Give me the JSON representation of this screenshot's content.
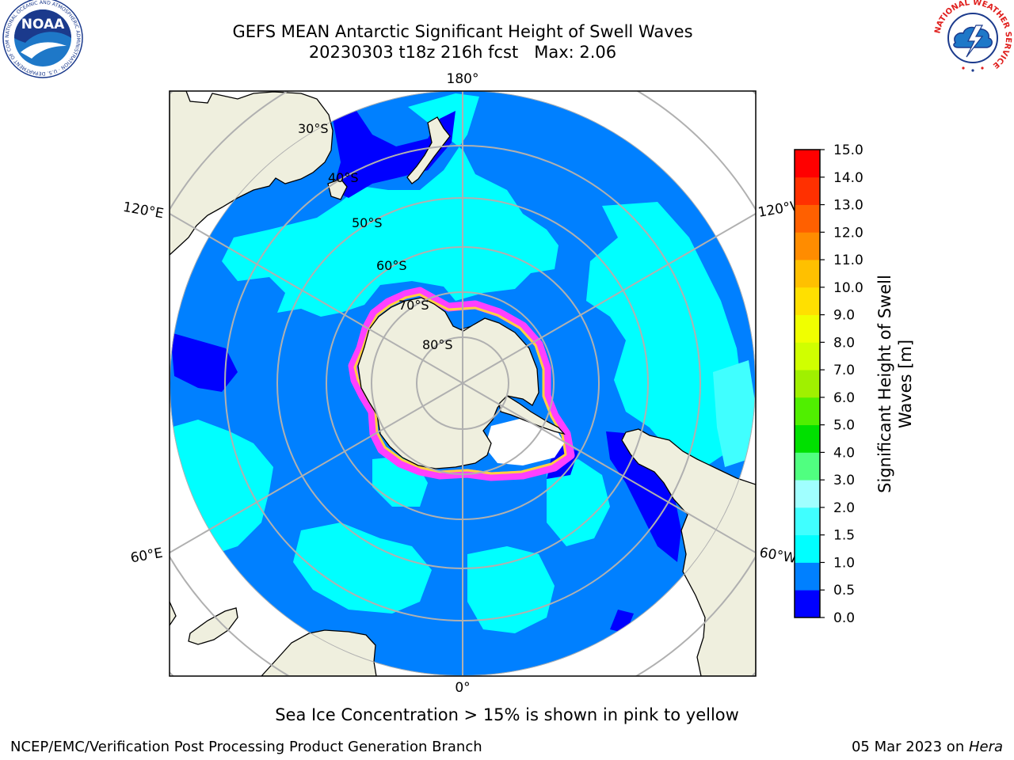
{
  "header": {
    "title_line1": "GEFS MEAN Antarctic Significant Height of Swell Waves",
    "title_line2": "20230303 t18z 216h fcst   Max: 2.06"
  },
  "map": {
    "longitude_labels": {
      "top": "180°",
      "bottom": "0°",
      "upper_left": "120°E",
      "upper_right": "120°W",
      "lower_left": "60°E",
      "lower_right": "60°W"
    },
    "latitude_labels": [
      "30°S",
      "40°S",
      "50°S",
      "60°S",
      "70°S",
      "80°S"
    ],
    "colors": {
      "land": "#efefde",
      "ocean_low": "#0000ff",
      "ocean_mid": "#0080ff",
      "ocean_high": "#00ffff",
      "ocean_higher": "#40ffff",
      "sea_ice": "#ff40ff",
      "grid": "#b0b0b0"
    }
  },
  "colorbar": {
    "label_line1": "Significant Height of Swell",
    "label_line2": "Waves [m]",
    "ticks": [
      "0.0",
      "0.5",
      "1.0",
      "1.5",
      "2.0",
      "3.0",
      "4.0",
      "5.0",
      "6.0",
      "7.0",
      "8.0",
      "9.0",
      "10.0",
      "11.0",
      "12.0",
      "13.0",
      "14.0",
      "15.0"
    ],
    "bin_colors": [
      "#0000ff",
      "#0080ff",
      "#00ffff",
      "#40ffff",
      "#a0ffff",
      "#50ff80",
      "#00e000",
      "#50ef00",
      "#a0f000",
      "#d0ff00",
      "#f0ff00",
      "#ffe000",
      "#ffc000",
      "#ff8c00",
      "#ff6000",
      "#ff3000",
      "#ff0000"
    ]
  },
  "caption": "Sea Ice Concentration > 15% is shown in pink to yellow",
  "footer": {
    "left": "NCEP/EMC/Verification Post Processing Product Generation Branch",
    "right_date": "05 Mar 2023 on ",
    "right_host": "Hera"
  },
  "logos": {
    "noaa_text": "NOAA",
    "noaa_ring": "NATIONAL OCEANIC AND ATMOSPHERIC ADMINISTRATION · U.S. DEPARTMENT OF COMMERCE",
    "nws_ring": "NATIONAL WEATHER SERVICE"
  }
}
